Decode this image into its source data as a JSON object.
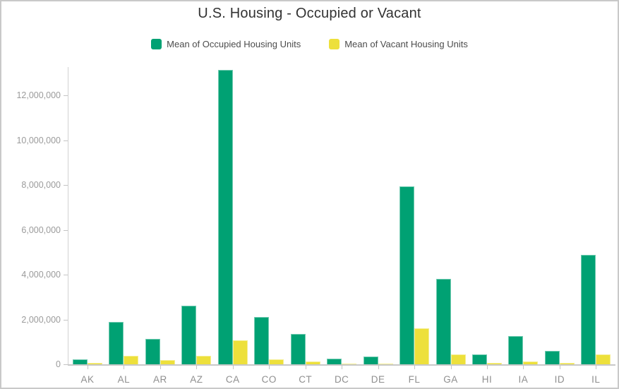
{
  "chart_data": {
    "type": "bar",
    "title": "U.S. Housing - Occupied or Vacant",
    "xlabel": "",
    "ylabel": "",
    "categories": [
      "AK",
      "AL",
      "AR",
      "AZ",
      "CA",
      "CO",
      "CT",
      "DC",
      "DE",
      "FL",
      "GA",
      "HI",
      "IA",
      "ID",
      "IL"
    ],
    "series": [
      {
        "name": "Mean of Occupied Housing Units",
        "color": "#00a173",
        "values": [
          220000,
          1880000,
          1130000,
          2610000,
          13150000,
          2100000,
          1360000,
          250000,
          335000,
          7950000,
          3820000,
          440000,
          1250000,
          610000,
          4880000
        ]
      },
      {
        "name": "Mean of Vacant Housing Units",
        "color": "#ede03b",
        "values": [
          55000,
          365000,
          180000,
          365000,
          1060000,
          210000,
          115000,
          30000,
          45000,
          1600000,
          450000,
          65000,
          125000,
          65000,
          450000
        ]
      }
    ],
    "ylim": [
      0,
      13260000
    ],
    "ytick_step": 2000000,
    "ytick_labels": [
      "0",
      "2,000,000",
      "4,000,000",
      "6,000,000",
      "8,000,000",
      "10,000,000",
      "12,000,000"
    ],
    "legend_position": "top",
    "grid": false,
    "colors": {
      "frame_border": "#c9c9c9",
      "axis": "#d2d2d2",
      "y_label": "#9b9b9b",
      "x_label": "#8f8f8f",
      "title": "#323232",
      "legend_text": "#4c4c4c"
    }
  }
}
